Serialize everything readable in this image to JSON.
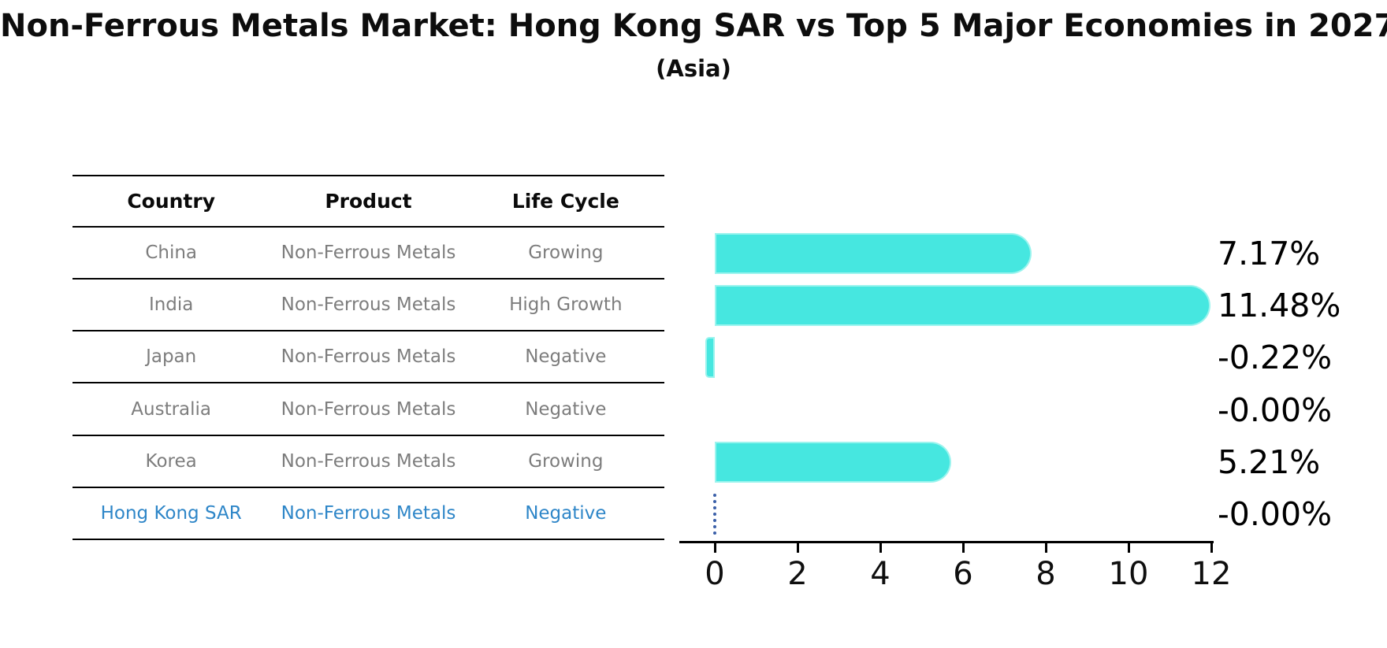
{
  "title": "Non-Ferrous Metals Market: Hong Kong SAR vs Top 5 Major Economies in 2027",
  "subtitle": "(Asia)",
  "table": {
    "headers": [
      "Country",
      "Product",
      "Life Cycle"
    ],
    "rows": [
      {
        "country": "China",
        "product": "Non-Ferrous Metals",
        "life_cycle": "Growing",
        "highlight": false
      },
      {
        "country": "India",
        "product": "Non-Ferrous Metals",
        "life_cycle": "High Growth",
        "highlight": false
      },
      {
        "country": "Japan",
        "product": "Non-Ferrous Metals",
        "life_cycle": "Negative",
        "highlight": false
      },
      {
        "country": "Australia",
        "product": "Non-Ferrous Metals",
        "life_cycle": "Negative",
        "highlight": false
      },
      {
        "country": "Korea",
        "product": "Non-Ferrous Metals",
        "life_cycle": "Growing",
        "highlight": false
      },
      {
        "country": "Hong Kong SAR",
        "product": "Non-Ferrous Metals",
        "life_cycle": "Negative",
        "highlight": true
      }
    ]
  },
  "chart_data": {
    "type": "bar",
    "orientation": "horizontal",
    "categories": [
      "China",
      "India",
      "Japan",
      "Australia",
      "Korea",
      "Hong Kong SAR"
    ],
    "values": [
      7.17,
      11.48,
      -0.22,
      -0.0,
      5.21,
      -0.0
    ],
    "value_labels": [
      "7.17%",
      "11.48%",
      "-0.22%",
      "-0.00%",
      "5.21%",
      "-0.00%"
    ],
    "x_ticks": [
      0,
      2,
      4,
      6,
      8,
      10,
      12
    ],
    "xlim": [
      -0.86,
      12.05
    ],
    "xlabel": "",
    "ylabel": "",
    "grid": false,
    "legend": false,
    "highlight_index": 5,
    "bar_color": "#46E7E0",
    "highlight_line_color": "#3A5FA8",
    "highlight_text_color": "#2E86C8",
    "muted_text_color": "#7d7d7d",
    "axis_color": "#000000"
  }
}
